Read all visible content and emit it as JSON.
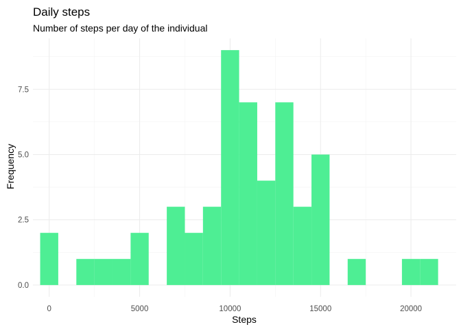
{
  "chart_data": {
    "type": "bar",
    "title": "Daily steps",
    "subtitle": "Number of steps per day of the individual",
    "xlabel": "Steps",
    "ylabel": "Frequency",
    "xlim": [
      -900,
      22500
    ],
    "ylim": [
      -0.45,
      9.45
    ],
    "x_ticks": [
      0,
      5000,
      10000,
      15000,
      20000
    ],
    "x_tick_labels": [
      "0",
      "5000",
      "10000",
      "15000",
      "20000"
    ],
    "y_ticks": [
      0,
      2.5,
      5,
      7.5
    ],
    "y_tick_labels": [
      "0.0",
      "2.5",
      "5.0",
      "7.5"
    ],
    "bin_width": 1000,
    "bin_centers": [
      0,
      1000,
      2000,
      3000,
      4000,
      5000,
      6000,
      7000,
      8000,
      9000,
      10000,
      11000,
      12000,
      13000,
      14000,
      15000,
      16000,
      17000,
      18000,
      19000,
      20000,
      21000
    ],
    "counts": [
      2,
      0,
      1,
      1,
      1,
      2,
      0,
      3,
      2,
      3,
      9,
      7,
      4,
      7,
      3,
      5,
      0,
      1,
      0,
      0,
      1,
      1
    ],
    "bar_color": "#4eee94",
    "grid": true,
    "legend": "none"
  }
}
